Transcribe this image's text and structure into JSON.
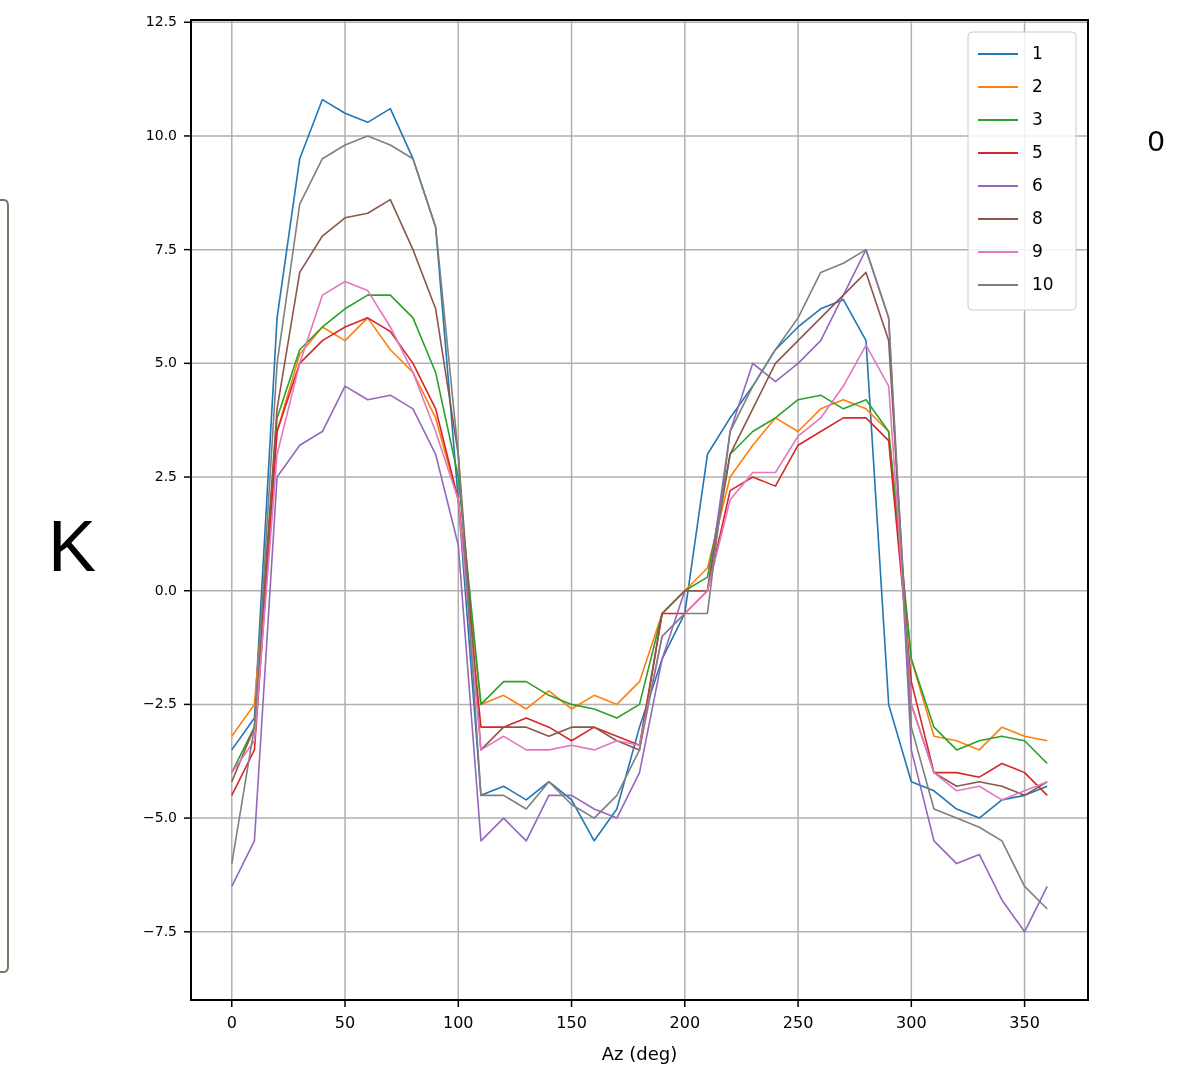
{
  "chart_data": {
    "type": "line",
    "xlabel": "Az (deg)",
    "annotations": [
      "K",
      "0"
    ],
    "x": [
      0,
      10,
      20,
      30,
      40,
      50,
      60,
      70,
      80,
      90,
      100,
      110,
      120,
      130,
      140,
      150,
      160,
      170,
      180,
      190,
      200,
      210,
      220,
      230,
      240,
      250,
      260,
      270,
      280,
      290,
      300,
      310,
      320,
      330,
      340,
      350,
      360
    ],
    "xlim": [
      -18,
      378
    ],
    "xticks": [
      0,
      50,
      100,
      150,
      200,
      250,
      300,
      350
    ],
    "ylim": [
      -9,
      12.55
    ],
    "yticks": [
      {
        "value": -7.5,
        "label": "−7.5"
      },
      {
        "value": -5,
        "label": "−5.0"
      },
      {
        "value": -2.5,
        "label": "−2.5"
      },
      {
        "value": 0,
        "label": "0.0"
      },
      {
        "value": 2.5,
        "label": "2.5"
      },
      {
        "value": 5,
        "label": "5.0"
      },
      {
        "value": 7.5,
        "label": "7.5"
      },
      {
        "value": 10,
        "label": "10.0"
      },
      {
        "value": 12.5,
        "label": "12.5"
      }
    ],
    "grid": true,
    "legend": "top right",
    "series": [
      {
        "name": "1",
        "color": "#1f77b4",
        "values": [
          -3.5,
          -2.8,
          6,
          9.5,
          10.8,
          10.5,
          10.3,
          10.6,
          9.5,
          8,
          2,
          -4.5,
          -4.3,
          -4.6,
          -4.2,
          -4.6,
          -5.5,
          -4.8,
          -3,
          -1.5,
          -0.5,
          3,
          3.8,
          4.5,
          5.3,
          5.8,
          6.2,
          6.4,
          5.5,
          -2.5,
          -4.2,
          -4.4,
          -4.8,
          -5,
          -4.6,
          -4.5,
          -4.3
        ]
      },
      {
        "name": "2",
        "color": "#ff7f0e",
        "values": [
          -3.2,
          -2.5,
          3.5,
          5.2,
          5.8,
          5.5,
          6,
          5.3,
          4.8,
          3.8,
          2,
          -2.5,
          -2.3,
          -2.6,
          -2.2,
          -2.6,
          -2.3,
          -2.5,
          -2,
          -0.5,
          0,
          0.5,
          2.5,
          3.2,
          3.8,
          3.5,
          4,
          4.2,
          4,
          3.5,
          -1.5,
          -3.2,
          -3.3,
          -3.5,
          -3,
          -3.2,
          -3.3
        ]
      },
      {
        "name": "3",
        "color": "#2ca02c",
        "values": [
          -4,
          -3,
          3.8,
          5.3,
          5.8,
          6.2,
          6.5,
          6.5,
          6,
          4.8,
          2.5,
          -2.5,
          -2,
          -2,
          -2.3,
          -2.5,
          -2.6,
          -2.8,
          -2.5,
          -0.5,
          0,
          0.3,
          3,
          3.5,
          3.8,
          4.2,
          4.3,
          4,
          4.2,
          3.5,
          -1.5,
          -3,
          -3.5,
          -3.3,
          -3.2,
          -3.3,
          -3.8
        ]
      },
      {
        "name": "5",
        "color": "#d62728",
        "values": [
          -4.5,
          -3.5,
          3.5,
          5,
          5.5,
          5.8,
          6,
          5.7,
          5,
          4,
          2,
          -3,
          -3,
          -2.8,
          -3,
          -3.3,
          -3,
          -3.2,
          -3.4,
          -0.5,
          -0.5,
          0,
          2.2,
          2.5,
          2.3,
          3.2,
          3.5,
          3.8,
          3.8,
          3.3,
          -2,
          -4,
          -4,
          -4.1,
          -3.8,
          -4,
          -4.5
        ]
      },
      {
        "name": "6",
        "color": "#9467bd",
        "values": [
          -6.5,
          -5.5,
          2.5,
          3.2,
          3.5,
          4.5,
          4.2,
          4.3,
          4,
          3,
          1,
          -5.5,
          -5,
          -5.5,
          -4.5,
          -4.5,
          -4.8,
          -5,
          -4,
          -1.5,
          0,
          0,
          3.5,
          5,
          4.6,
          5,
          5.5,
          6.5,
          7.5,
          6,
          -3.5,
          -5.5,
          -6,
          -5.8,
          -6.8,
          -7.5,
          -6.5
        ]
      },
      {
        "name": "8",
        "color": "#8c564b",
        "values": [
          -4.2,
          -3,
          4,
          7,
          7.8,
          8.2,
          8.3,
          8.6,
          7.5,
          6.2,
          3,
          -3.5,
          -3,
          -3,
          -3.2,
          -3,
          -3,
          -3.3,
          -3.5,
          -0.5,
          0,
          0,
          3,
          4,
          5,
          5.5,
          6,
          6.5,
          7,
          5.5,
          -2.5,
          -4,
          -4.3,
          -4.2,
          -4.3,
          -4.5,
          -4.2
        ]
      },
      {
        "name": "9",
        "color": "#e377c2",
        "values": [
          -4,
          -3.3,
          3,
          5,
          6.5,
          6.8,
          6.6,
          5.8,
          4.8,
          3.5,
          2,
          -3.5,
          -3.2,
          -3.5,
          -3.5,
          -3.4,
          -3.5,
          -3.3,
          -3.4,
          -1,
          -0.5,
          0,
          2,
          2.6,
          2.6,
          3.4,
          3.8,
          4.5,
          5.4,
          4.5,
          -2.5,
          -4,
          -4.4,
          -4.3,
          -4.6,
          -4.4,
          -4.2
        ]
      },
      {
        "name": "10",
        "color": "#7f7f7f",
        "values": [
          -6,
          -3,
          5,
          8.5,
          9.5,
          9.8,
          10,
          9.8,
          9.5,
          8,
          3,
          -4.5,
          -4.5,
          -4.8,
          -4.2,
          -4.7,
          -5,
          -4.5,
          -3.5,
          -1,
          -0.5,
          -0.5,
          3.5,
          4.5,
          5.3,
          6,
          7,
          7.2,
          7.5,
          6,
          -3,
          -4.8,
          -5,
          -5.2,
          -5.5,
          -6.5,
          -7
        ]
      }
    ]
  }
}
